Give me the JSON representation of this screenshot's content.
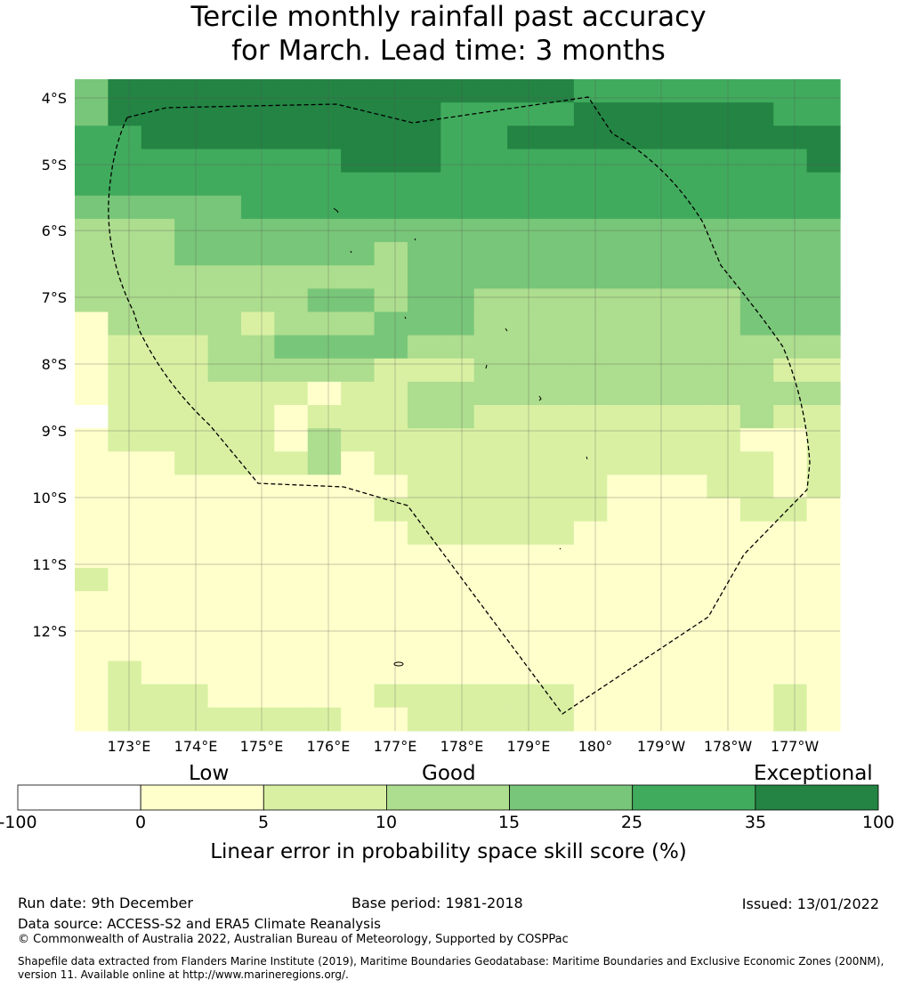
{
  "title": {
    "line1": "Tercile monthly rainfall past accuracy",
    "line2": "for March. Lead time: 3 months"
  },
  "map": {
    "lat_labels": [
      "4°S",
      "5°S",
      "6°S",
      "7°S",
      "8°S",
      "9°S",
      "10°S",
      "11°S",
      "12°S"
    ],
    "lon_labels": [
      "173°E",
      "174°E",
      "175°E",
      "176°E",
      "177°E",
      "178°E",
      "179°E",
      "180°",
      "179°W",
      "178°W",
      "177°W"
    ],
    "colors": [
      "#ffffff",
      "#ffffcc",
      "#d9f0a3",
      "#addd8e",
      "#78c679",
      "#41ab5d",
      "#238443"
    ],
    "grid": [
      "46666666666666655555555",
      "46666666666555566666655",
      "55666666666556666666666",
      "55555555666555555555556",
      "55555555555555555555555",
      "44444555555555555555555",
      "33344444444444444444444",
      "33344444434444444444444",
      "33333333334444444444444",
      "33333334434433333333444",
      "13333233344433333333444",
      "12223344443333333333333",
      "12223333322233333333322",
      "12222221223333333333333",
      "02222212223322222222322",
      "12222213222222222222112",
      "11122223122222222222212",
      "11111111112222221112212",
      "11111111122222221111221",
      "11111111112222211111111",
      "11111111111111111111111",
      "21111111111111111111111",
      "11111111111111111111111",
      "11111111111111111111111",
      "11111111111111111111111",
      "12111111111111111111111",
      "12221111122222211111121",
      "12222222112222211111121"
    ]
  },
  "colorbar": {
    "category_labels": [
      "Low",
      "Good",
      "Exceptional"
    ],
    "ticks": [
      "-100",
      "0",
      "5",
      "10",
      "15",
      "25",
      "35",
      "100"
    ],
    "title": "Linear error in probability space skill score (%)"
  },
  "footer": {
    "run_date": "Run date: 9th December",
    "base_period": "Base period: 1981-2018",
    "issued": "Issued: 13/01/2022",
    "data_source": "Data source: ACCESS-S2 and ERA5 Climate Reanalysis",
    "copyright": "© Commonwealth of Australia 2022, Australian Bureau of Meteorology, Supported by COSPPac",
    "shapefile_note": "Shapefile data extracted from Flanders Marine Institute (2019), Maritime Boundaries Geodatabase: Maritime Boundaries and Exclusive Economic Zones (200NM), version 11. Available online at http://www.marineregions.org/."
  }
}
